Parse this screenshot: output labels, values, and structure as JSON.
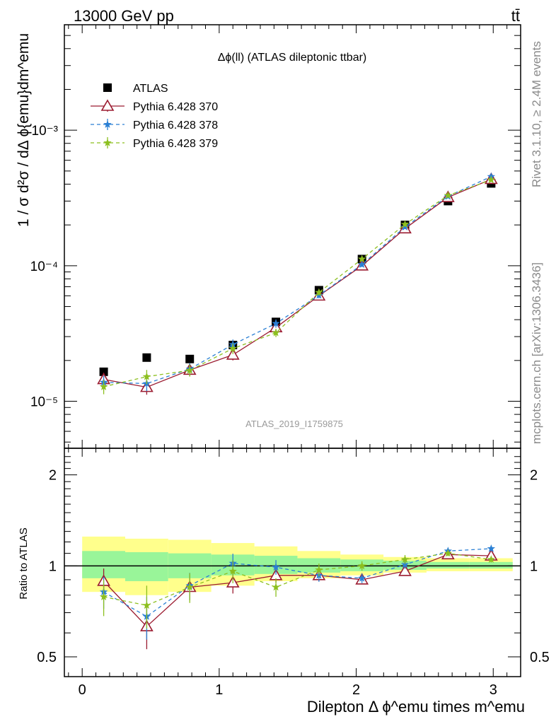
{
  "header": {
    "energy_label": "13000 GeV pp",
    "process_label": "tt̄"
  },
  "side_labels": {
    "rivet": "Rivet 3.1.10, ≥ 2.4M events",
    "source": "mcplots.cern.ch [arXiv:1306.3436]"
  },
  "chart_data": [
    {
      "type": "scatter",
      "title": "Δϕ(ll) (ATLAS dileptonic ttbar)",
      "watermark": "ATLAS_2019_I1759875",
      "ylabel": "1 / σ  d²σ / dΔ ϕ{emu}dm^emu",
      "yscale": "log",
      "ylim": [
        4.5e-06,
        0.006
      ],
      "xlim": [
        -0.13,
        3.2
      ],
      "y_ticks": [
        {
          "value": 1e-05,
          "label": "10⁻⁵"
        },
        {
          "value": 0.0001,
          "label": "10⁻⁴"
        },
        {
          "value": 0.001,
          "label": "10⁻³"
        }
      ],
      "legend_position": "top-left",
      "x": [
        0.157,
        0.471,
        0.785,
        1.1,
        1.414,
        1.728,
        2.042,
        2.356,
        2.67,
        2.985
      ],
      "series": [
        {
          "name": "ATLAS",
          "marker": "square",
          "color": "#000000",
          "values": [
            1.65e-05,
            2.1e-05,
            2.05e-05,
            2.6e-05,
            3.85e-05,
            6.6e-05,
            0.000112,
            0.0002,
            0.0003,
            0.000405
          ]
        },
        {
          "name": "Pythia 6.428 370",
          "marker": "open-triangle",
          "line": "solid",
          "color": "#9b1b30",
          "values": [
            1.45e-05,
            1.27e-05,
            1.7e-05,
            2.2e-05,
            3.5e-05,
            6e-05,
            0.0001,
            0.000188,
            0.00032,
            0.000435
          ]
        },
        {
          "name": "Pythia 6.428 378",
          "marker": "star",
          "line": "dashed",
          "color": "#2a7fd4",
          "values": [
            1.38e-05,
            1.35e-05,
            1.73e-05,
            2.62e-05,
            3.75e-05,
            6.05e-05,
            0.000102,
            0.000193,
            0.000325,
            0.000455
          ]
        },
        {
          "name": "Pythia 6.428 379",
          "marker": "star",
          "line": "dashed",
          "color": "#8cbf1f",
          "values": [
            1.28e-05,
            1.52e-05,
            1.69e-05,
            2.45e-05,
            3.2e-05,
            6.35e-05,
            0.000112,
            0.000202,
            0.00033,
            0.00043
          ]
        }
      ]
    },
    {
      "type": "line",
      "ylabel": "Ratio to ATLAS",
      "xlabel": "Dilepton Δ ϕ^emu times m^emu",
      "yscale": "log",
      "ylim": [
        0.43,
        2.45
      ],
      "xlim": [
        -0.13,
        3.2
      ],
      "x_ticks": [
        0,
        1,
        2,
        3
      ],
      "y_ticks": [
        {
          "value": 0.5,
          "label": "0.5"
        },
        {
          "value": 1,
          "label": "1"
        },
        {
          "value": 2,
          "label": "2"
        }
      ],
      "x": [
        0.157,
        0.471,
        0.785,
        1.1,
        1.414,
        1.728,
        2.042,
        2.356,
        2.67,
        2.985
      ],
      "bin_edges": [
        0,
        0.314,
        0.628,
        0.942,
        1.257,
        1.571,
        1.885,
        2.199,
        2.513,
        2.827,
        3.142
      ],
      "band_yellow": {
        "lo": [
          0.82,
          0.8,
          0.82,
          0.86,
          0.89,
          0.91,
          0.93,
          0.95,
          0.96,
          0.96
        ],
        "hi": [
          1.25,
          1.23,
          1.22,
          1.19,
          1.16,
          1.12,
          1.09,
          1.07,
          1.06,
          1.06
        ]
      },
      "band_green": {
        "lo": [
          0.91,
          0.89,
          0.91,
          0.93,
          0.94,
          0.95,
          0.96,
          0.97,
          0.98,
          0.98
        ],
        "hi": [
          1.12,
          1.11,
          1.1,
          1.09,
          1.08,
          1.06,
          1.05,
          1.04,
          1.03,
          1.03
        ]
      },
      "series": [
        {
          "name": "Pythia 6.428 370",
          "color": "#9b1b30",
          "values": [
            0.89,
            0.63,
            0.85,
            0.88,
            0.93,
            0.93,
            0.9,
            0.96,
            1.09,
            1.08
          ]
        },
        {
          "name": "Pythia 6.428 378",
          "color": "#2a7fd4",
          "values": [
            0.82,
            0.68,
            0.86,
            1.02,
            0.99,
            0.93,
            0.91,
            1.01,
            1.12,
            1.14
          ]
        },
        {
          "name": "Pythia 6.428 379",
          "color": "#8cbf1f",
          "values": [
            0.79,
            0.74,
            0.85,
            0.96,
            0.85,
            0.97,
            1.0,
            1.05,
            1.1,
            1.05
          ]
        }
      ]
    }
  ]
}
